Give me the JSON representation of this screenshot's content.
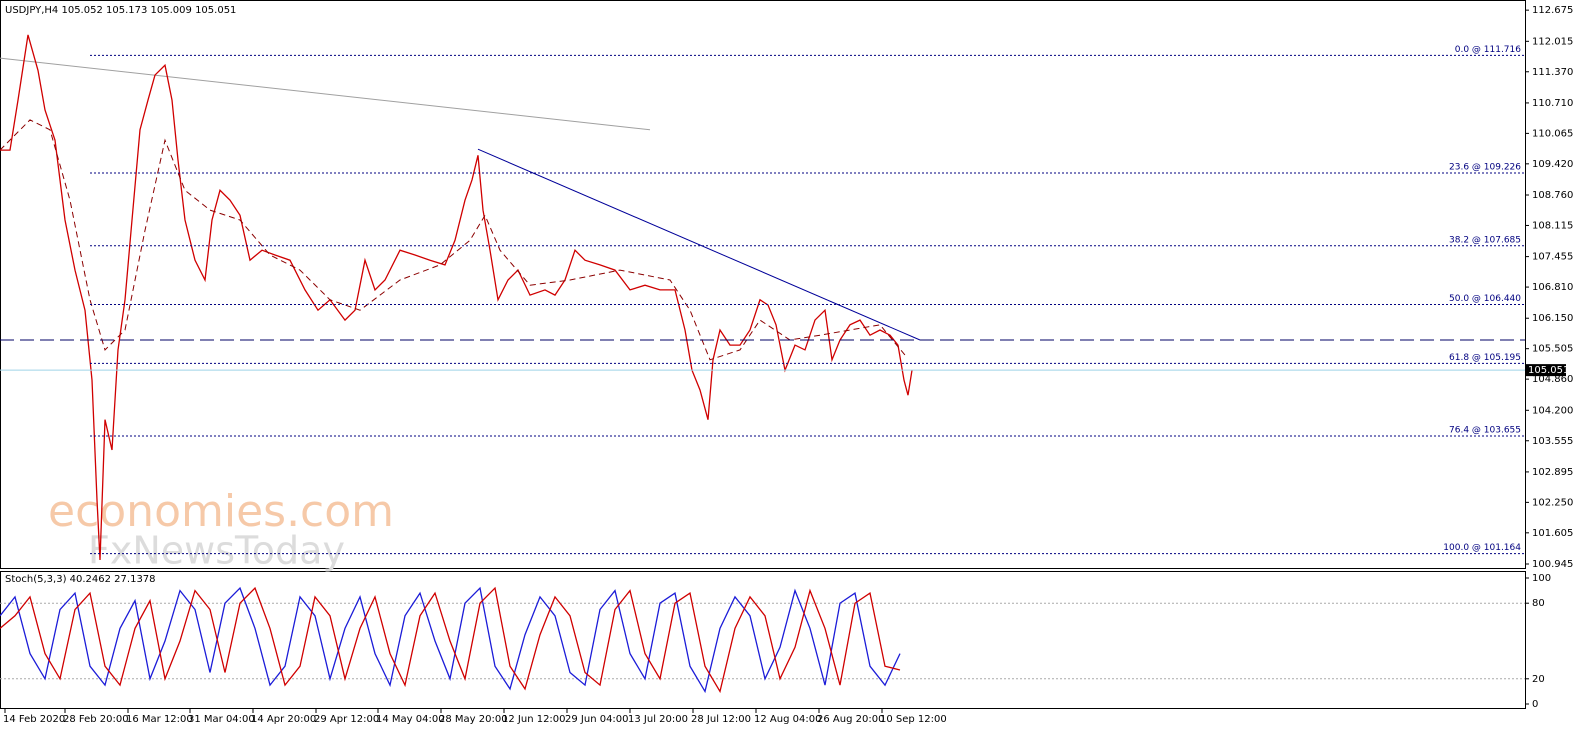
{
  "chart_data": [
    {
      "type": "line",
      "title": "USDJPY,H4  105.052 105.173 105.009 105.051",
      "watermark": [
        "economies.com",
        "FxNewsToday"
      ],
      "xlim": [
        0,
        1525
      ],
      "xticks": [
        {
          "value": 5,
          "label": "14 Feb 2020"
        },
        {
          "value": 65,
          "label": "28 Feb 20:00"
        },
        {
          "value": 128,
          "label": "16 Mar 12:00"
        },
        {
          "value": 190,
          "label": "31 Mar 04:00"
        },
        {
          "value": 253,
          "label": "14 Apr 20:00"
        },
        {
          "value": 316,
          "label": "29 Apr 12:00"
        },
        {
          "value": 378,
          "label": "14 May 04:00"
        },
        {
          "value": 441,
          "label": "28 May 20:00"
        },
        {
          "value": 504,
          "label": "12 Jun 12:00"
        },
        {
          "value": 567,
          "label": "29 Jun 04:00"
        },
        {
          "value": 630,
          "label": "13 Jul 20:00"
        },
        {
          "value": 693,
          "label": "28 Jul 12:00"
        },
        {
          "value": 756,
          "label": "12 Aug 04:00"
        },
        {
          "value": 819,
          "label": "26 Aug 20:00"
        },
        {
          "value": 882,
          "label": "10 Sep 12:00"
        }
      ],
      "ylim": [
        100.86,
        112.89
      ],
      "yticks": [
        112.675,
        112.015,
        {
          "value": 111.37,
          "label": "111.370"
        },
        {
          "value": 110.71,
          "label": "110.710"
        },
        110.065,
        {
          "value": 109.42,
          "label": "109.420"
        },
        {
          "value": 108.76,
          "label": "108.760"
        },
        108.115,
        107.455,
        {
          "value": 106.81,
          "label": "106.810"
        },
        {
          "value": 106.15,
          "label": "106.150"
        },
        105.505,
        {
          "value": 104.86,
          "label": "104.860"
        },
        {
          "value": 104.2,
          "label": "104.200"
        },
        103.555,
        102.895,
        {
          "value": 102.25,
          "label": "102.250"
        },
        101.605,
        100.945
      ],
      "series": [
        {
          "color": "#d00000",
          "style": "solid",
          "x": [
            0,
            10,
            18,
            28,
            38,
            45,
            55,
            65,
            75,
            85,
            92,
            97,
            100,
            105,
            112,
            118,
            125,
            132,
            140,
            148,
            155,
            165,
            172,
            178,
            185,
            195,
            205,
            212,
            220,
            230,
            240,
            250,
            262,
            275,
            290,
            305,
            318,
            330,
            345,
            355,
            365,
            375,
            385,
            400,
            415,
            430,
            445,
            455,
            465,
            472,
            478,
            483,
            490,
            498,
            508,
            518,
            530,
            545,
            555,
            565,
            575,
            585,
            600,
            615,
            630,
            645,
            660,
            675,
            685,
            692,
            700,
            708,
            713,
            720,
            730,
            740,
            750,
            760,
            768,
            776,
            785,
            795,
            805,
            815,
            825,
            832,
            840,
            850,
            860,
            870,
            880,
            890,
            898,
            904,
            908,
            912
          ],
          "values": [
            109.71,
            109.71,
            110.77,
            112.15,
            111.4,
            110.56,
            109.92,
            108.23,
            107.17,
            106.32,
            104.84,
            102.3,
            101.03,
            104.0,
            103.36,
            105.48,
            106.54,
            108.23,
            110.14,
            110.77,
            111.3,
            111.51,
            110.77,
            109.5,
            108.23,
            107.38,
            106.96,
            108.23,
            108.86,
            108.65,
            108.33,
            107.38,
            107.59,
            107.49,
            107.38,
            106.75,
            106.32,
            106.54,
            106.11,
            106.32,
            107.38,
            106.75,
            106.96,
            107.59,
            107.49,
            107.38,
            107.28,
            107.8,
            108.65,
            109.08,
            109.6,
            108.44,
            107.59,
            106.54,
            106.96,
            107.17,
            106.64,
            106.75,
            106.64,
            106.96,
            107.59,
            107.38,
            107.28,
            107.17,
            106.75,
            106.85,
            106.75,
            106.75,
            105.9,
            105.05,
            104.63,
            104.0,
            105.27,
            105.9,
            105.58,
            105.58,
            105.9,
            106.54,
            106.43,
            106.01,
            105.05,
            105.58,
            105.48,
            106.11,
            106.32,
            105.27,
            105.69,
            106.01,
            106.11,
            105.79,
            105.9,
            105.79,
            105.58,
            104.84,
            104.52,
            105.05
          ]
        },
        {
          "color": "#8b0000",
          "style": "dashed",
          "x": [
            0,
            30,
            50,
            70,
            90,
            105,
            125,
            145,
            165,
            185,
            210,
            240,
            270,
            300,
            330,
            360,
            400,
            440,
            470,
            485,
            500,
            530,
            570,
            620,
            670,
            690,
            710,
            740,
            760,
            790,
            820,
            850,
            880,
            905
          ],
          "values": [
            109.71,
            110.35,
            110.14,
            108.65,
            106.54,
            105.48,
            105.9,
            108.01,
            109.92,
            108.86,
            108.44,
            108.23,
            107.49,
            107.17,
            106.54,
            106.32,
            106.96,
            107.28,
            107.8,
            108.33,
            107.59,
            106.85,
            106.96,
            107.17,
            106.96,
            106.32,
            105.27,
            105.48,
            106.11,
            105.69,
            105.79,
            105.9,
            106.01,
            105.37
          ]
        }
      ],
      "trendlines": [
        {
          "color": "#a0a0a0",
          "x": [
            0,
            650
          ],
          "values": [
            111.66,
            110.14
          ]
        },
        {
          "color": "#000099",
          "x": [
            478,
            920
          ],
          "values": [
            109.73,
            105.69
          ]
        },
        {
          "color": "#a0a0a0",
          "x": [
            0,
            210
          ],
          "values": [
            100.8,
            100.75
          ]
        }
      ],
      "hline": {
        "value": 105.69,
        "color": "#000066"
      },
      "fib_levels": [
        {
          "value": 111.716,
          "label": "0.0 @ 111.716"
        },
        {
          "value": 109.226,
          "label": "23.6 @ 109.226"
        },
        {
          "value": 107.685,
          "label": "38.2 @ 107.685"
        },
        {
          "value": 106.44,
          "label": "50.0 @ 106.440"
        },
        {
          "value": 105.195,
          "label": "61.8 @ 105.195"
        },
        {
          "value": 103.655,
          "label": "76.4 @ 103.655"
        },
        {
          "value": 101.164,
          "label": "100.0 @ 101.164"
        }
      ],
      "last_price": 105.051
    },
    {
      "type": "line",
      "title": "Stoch(5,3,3) 40.2462 27.1378",
      "ylim": [
        0,
        100
      ],
      "yticks": [
        100,
        80,
        20,
        0
      ],
      "levels": [
        20,
        80
      ],
      "x": [
        0,
        15,
        30,
        45,
        60,
        75,
        90,
        105,
        120,
        135,
        150,
        165,
        180,
        195,
        210,
        225,
        240,
        255,
        270,
        285,
        300,
        315,
        330,
        345,
        360,
        375,
        390,
        405,
        420,
        435,
        450,
        465,
        480,
        495,
        510,
        525,
        540,
        555,
        570,
        585,
        600,
        615,
        630,
        645,
        660,
        675,
        690,
        705,
        720,
        735,
        750,
        765,
        780,
        795,
        810,
        825,
        840,
        855,
        870,
        885,
        900
      ],
      "series": [
        {
          "color": "#1c1cd8",
          "style": "solid",
          "values": [
            70,
            85,
            40,
            20,
            75,
            88,
            30,
            15,
            60,
            82,
            20,
            50,
            90,
            75,
            25,
            80,
            92,
            60,
            15,
            30,
            85,
            70,
            20,
            60,
            85,
            40,
            15,
            70,
            88,
            50,
            20,
            80,
            92,
            30,
            12,
            55,
            85,
            70,
            25,
            15,
            75,
            90,
            40,
            20,
            80,
            88,
            30,
            10,
            60,
            85,
            70,
            20,
            45,
            90,
            60,
            15,
            80,
            88,
            30,
            15,
            40
          ]
        },
        {
          "color": "#d00000",
          "style": "solid",
          "values": [
            60,
            70,
            85,
            40,
            20,
            75,
            88,
            30,
            15,
            60,
            82,
            20,
            50,
            90,
            75,
            25,
            80,
            92,
            60,
            15,
            30,
            85,
            70,
            20,
            60,
            85,
            40,
            15,
            70,
            88,
            50,
            20,
            80,
            92,
            30,
            12,
            55,
            85,
            70,
            25,
            15,
            75,
            90,
            40,
            20,
            80,
            88,
            30,
            10,
            60,
            85,
            70,
            20,
            45,
            90,
            60,
            15,
            80,
            88,
            30,
            27
          ]
        }
      ]
    }
  ]
}
